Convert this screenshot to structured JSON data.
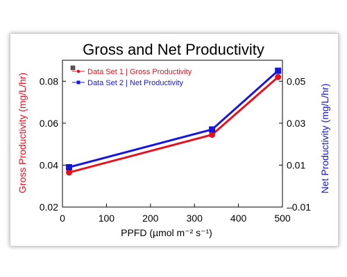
{
  "chart_data": {
    "type": "line",
    "title": "Gross and Net Productivity",
    "xlabel": "PPFD (µmol m⁻² s⁻¹)",
    "ylabel": "Gross Productivity (mg/L/hr)",
    "y2label": "Net Productivity (mg/L/hr)",
    "xlim": [
      0,
      500
    ],
    "ylim": [
      0.02,
      0.09
    ],
    "y2lim": [
      -0.01,
      0.06
    ],
    "x_ticks": [
      "0",
      "100",
      "200",
      "300",
      "400",
      "500"
    ],
    "y_ticks": [
      "0.02",
      "0.04",
      "0.06",
      "0.08"
    ],
    "y2_ticks": [
      "–0.01",
      "0.01",
      "0.03",
      "0.05"
    ],
    "legend_position": "top-left",
    "series": [
      {
        "name": "Data Set 1 | Gross Productivity",
        "axis": "left",
        "color": "#e8101c",
        "marker": "circle",
        "x": [
          15,
          340,
          490
        ],
        "y": [
          0.0365,
          0.0545,
          0.082
        ]
      },
      {
        "name": "Data Set 2 | Net Productivity",
        "axis": "right",
        "color": "#1515e0",
        "marker": "square",
        "x": [
          15,
          340,
          490
        ],
        "y": [
          0.009,
          0.027,
          0.055
        ]
      }
    ]
  }
}
